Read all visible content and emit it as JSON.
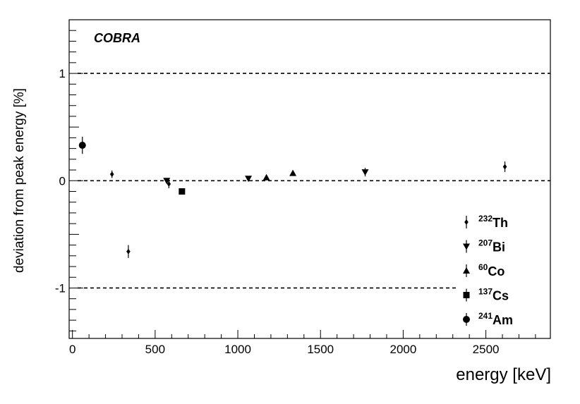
{
  "chart_data": {
    "type": "scatter",
    "title": "",
    "annotation": "COBRA",
    "xlabel": "energy [keV]",
    "ylabel": "deviation from peak energy [%]",
    "xlim": [
      -20,
      2890
    ],
    "ylim": [
      -1.47,
      1.5
    ],
    "x_ticks": [
      0,
      500,
      1000,
      1500,
      2000,
      2500
    ],
    "y_ticks": [
      -1,
      0,
      1
    ],
    "grid": false,
    "legend_position": "bottom-right",
    "reference_lines": [
      1,
      0,
      -1
    ],
    "series": [
      {
        "name": "Th",
        "mass": "232",
        "marker": "diamond",
        "points": [
          {
            "x": 239,
            "y": 0.06,
            "err": 0.035
          },
          {
            "x": 338,
            "y": -0.66,
            "err": 0.06
          },
          {
            "x": 583,
            "y": -0.03,
            "err": 0.04
          },
          {
            "x": 2615,
            "y": 0.13,
            "err": 0.05
          }
        ]
      },
      {
        "name": "Bi",
        "mass": "207",
        "marker": "triangle-down",
        "points": [
          {
            "x": 570,
            "y": 0.0,
            "err": 0.02
          },
          {
            "x": 1064,
            "y": 0.02,
            "err": 0.015
          },
          {
            "x": 1770,
            "y": 0.08,
            "err": 0.04
          }
        ]
      },
      {
        "name": "Co",
        "mass": "60",
        "marker": "triangle-up",
        "points": [
          {
            "x": 1173,
            "y": 0.03,
            "err": 0.015
          },
          {
            "x": 1333,
            "y": 0.07,
            "err": 0.015
          }
        ]
      },
      {
        "name": "Cs",
        "mass": "137",
        "marker": "square",
        "points": [
          {
            "x": 662,
            "y": -0.1,
            "err": 0.015
          }
        ]
      },
      {
        "name": "Am",
        "mass": "241",
        "marker": "circle",
        "points": [
          {
            "x": 60,
            "y": 0.33,
            "err": 0.08
          }
        ]
      }
    ]
  }
}
